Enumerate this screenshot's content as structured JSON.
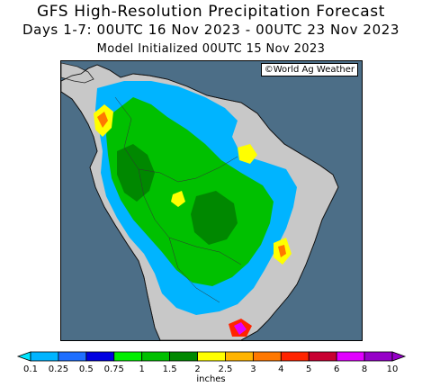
{
  "header": {
    "title": "GFS High-Resolution Precipitation Forecast",
    "period": "Days 1-7: 00UTC 16 Nov 2023 - 00UTC 23 Nov 2023",
    "initialized": "Model Initialized 00UTC 15 Nov 2023"
  },
  "map": {
    "credit": "©World Ag Weather",
    "ocean_color": "#4c6e87",
    "dry_land_color": "#c8c8c8"
  },
  "legend": {
    "units": "inches",
    "levels": [
      "0.1",
      "0.25",
      "0.5",
      "0.75",
      "1",
      "1.5",
      "2",
      "2.5",
      "3",
      "4",
      "5",
      "6",
      "8",
      "10"
    ],
    "colors": [
      "#00e5ff",
      "#00b4ff",
      "#1f6fff",
      "#0000e0",
      "#00ee00",
      "#00c000",
      "#008800",
      "#ffff00",
      "#ffb400",
      "#ff7800",
      "#ff2400",
      "#c80032",
      "#e100ff",
      "#9600c8"
    ]
  }
}
